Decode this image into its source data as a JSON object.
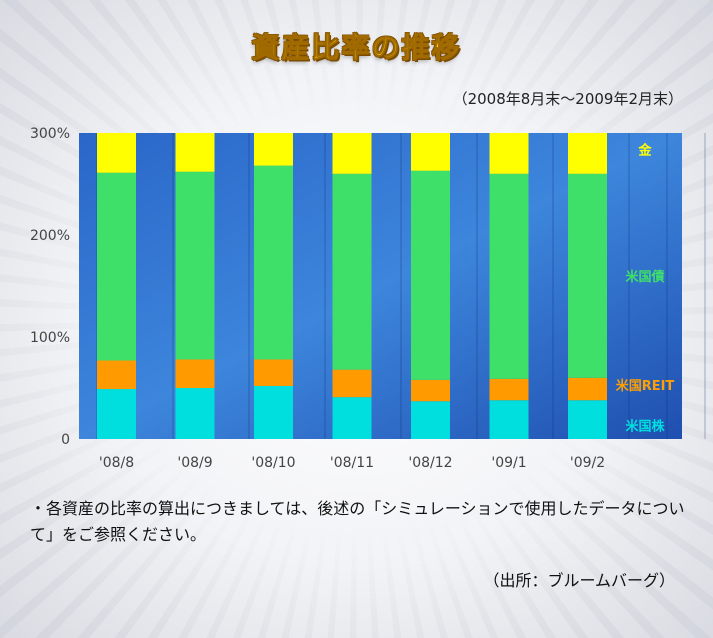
{
  "title": "資産比率の推移",
  "subtitle": "（2008年8月末〜2009年2月末）",
  "note": "・各資産の比率の算出につきましては、後述の「シミュレーションで使用したデータについて」をご参照ください。",
  "source": "（出所：ブルームバーグ）",
  "chart_data": {
    "type": "bar",
    "stacked": true,
    "categories": [
      "'08/8",
      "'08/9",
      "'08/10",
      "'08/11",
      "'08/12",
      "'09/1",
      "'09/2"
    ],
    "y_ticks": [
      "0",
      "100%",
      "200%",
      "300%"
    ],
    "ylim": [
      0,
      300
    ],
    "series": [
      {
        "name": "米国株",
        "color": "#00dede",
        "values": [
          49,
          50,
          52,
          41,
          37,
          38,
          38
        ]
      },
      {
        "name": "米国REIT",
        "color": "#ff9a00",
        "values": [
          28,
          28,
          26,
          27,
          21,
          21,
          22
        ]
      },
      {
        "name": "米国債",
        "color": "#3ee06a",
        "values": [
          184,
          184,
          190,
          192,
          205,
          201,
          200
        ]
      },
      {
        "name": "金",
        "color": "#ffff00",
        "values": [
          39,
          38,
          32,
          40,
          37,
          40,
          40
        ]
      }
    ],
    "legend_colors": {
      "米国株": "#00dede",
      "米国REIT": "#ffa000",
      "米国債": "#3ee06a",
      "金": "#ffff00"
    },
    "legend_placement": "right"
  }
}
